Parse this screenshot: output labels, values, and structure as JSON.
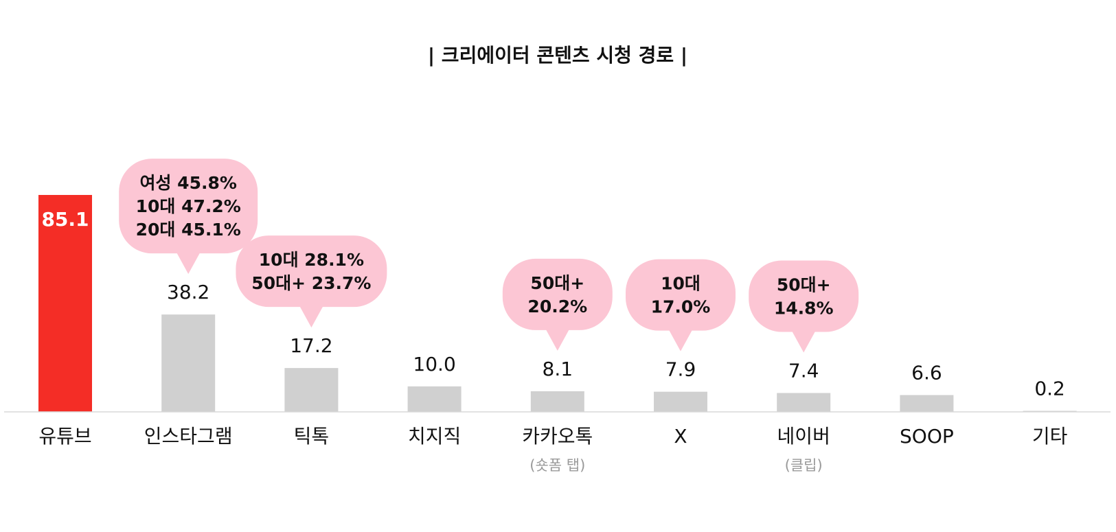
{
  "chart_data": {
    "type": "bar",
    "title": "| 크리에이터 콘텐츠 시청 경로 |",
    "xlabel": "",
    "ylabel": "",
    "ylim": [
      0,
      100
    ],
    "grid": false,
    "categories": [
      "유튜브",
      "인스타그램",
      "틱톡",
      "치지직",
      "카카오톡",
      "X",
      "네이버",
      "SOOP",
      "기타"
    ],
    "sublabels": [
      "",
      "",
      "",
      "",
      "(숏폼 탭)",
      "",
      "(클립)",
      "",
      ""
    ],
    "values": [
      85.1,
      38.2,
      17.2,
      10.0,
      8.1,
      7.9,
      7.4,
      6.6,
      0.2
    ],
    "value_labels": [
      "85.1",
      "38.2",
      "17.2",
      "10.0",
      "8.1",
      "7.9",
      "7.4",
      "6.6",
      "0.2"
    ],
    "callouts": [
      {
        "category_index": 1,
        "lines": [
          "여성 45.8%",
          "10대 47.2%",
          "20대 45.1%"
        ]
      },
      {
        "category_index": 2,
        "lines": [
          "10대 28.1%",
          "50대+ 23.7%"
        ]
      },
      {
        "category_index": 4,
        "lines": [
          "50대+",
          "20.2%"
        ]
      },
      {
        "category_index": 5,
        "lines": [
          "10대",
          "17.0%"
        ]
      },
      {
        "category_index": 6,
        "lines": [
          "50대+",
          "14.8%"
        ]
      }
    ],
    "colors": {
      "highlight_bar": "#f42d26",
      "bar": "#d0d0d0",
      "callout": "#fcc6d4",
      "baseline": "#d8d8d8",
      "text": "#111111",
      "subtext": "#999999",
      "highlight_label": "#ffffff"
    },
    "highlight_index": 0
  }
}
